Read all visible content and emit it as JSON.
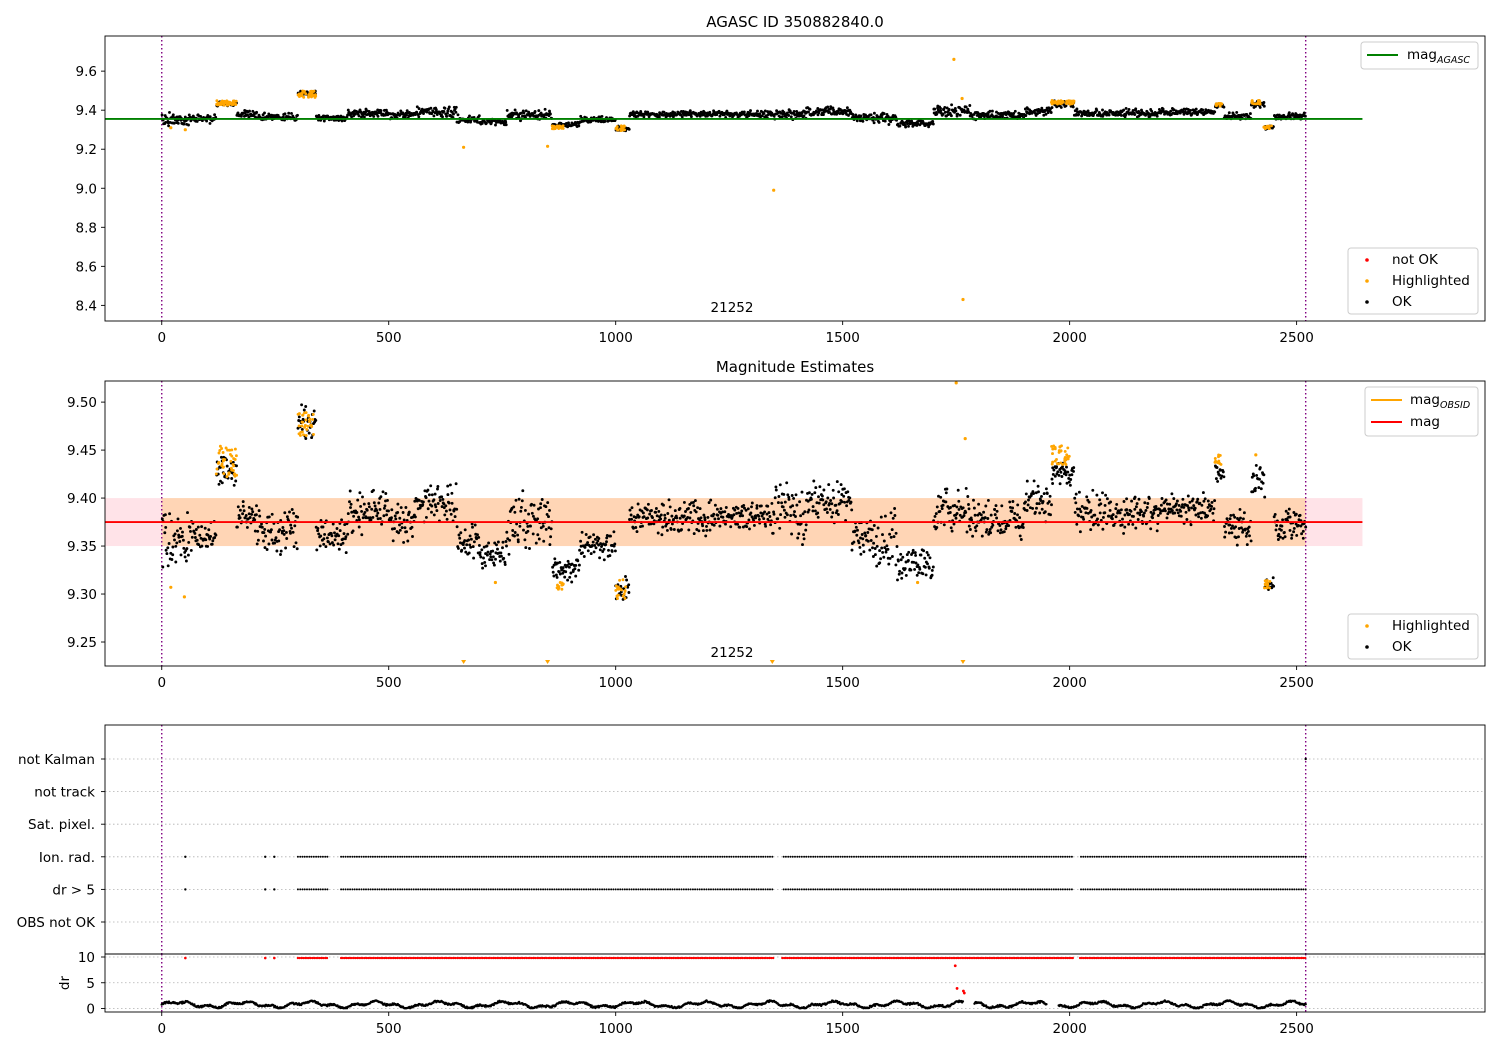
{
  "chart_data": [
    {
      "type": "scatter",
      "title": "AGASC ID 350882840.0",
      "annotation": "21252",
      "xlim": [
        -125,
        2915
      ],
      "ylim": [
        8.32,
        9.78
      ],
      "xticks": [
        0,
        500,
        1000,
        1500,
        2000,
        2500
      ],
      "yticks": [
        8.4,
        8.6,
        8.8,
        9.0,
        9.2,
        9.4,
        9.6
      ],
      "ytick_decimals": 1,
      "vlines": [
        0,
        2520
      ],
      "vline_color": "#800080",
      "legends": [
        {
          "position": "top-right",
          "entries": [
            {
              "label": "mag",
              "sub": "AGASC",
              "marker": "line",
              "color": "#008000"
            }
          ]
        },
        {
          "position": "bottom-right",
          "entries": [
            {
              "label": "not OK",
              "marker": "dot",
              "color": "#ff0000"
            },
            {
              "label": "Highlighted",
              "marker": "dot",
              "color": "#ffa500"
            },
            {
              "label": "OK",
              "marker": "dot",
              "color": "#000000"
            }
          ]
        }
      ],
      "hline": {
        "y": 9.355,
        "x": [
          -125,
          2645
        ],
        "color": "#008000"
      },
      "segments": [
        [
          0,
          15,
          9.3,
          9.4
        ],
        [
          15,
          60,
          9.31,
          9.39
        ],
        [
          60,
          120,
          9.33,
          9.38
        ],
        [
          120,
          165,
          9.42,
          9.45
        ],
        [
          165,
          210,
          9.36,
          9.4
        ],
        [
          210,
          300,
          9.34,
          9.39
        ],
        [
          300,
          340,
          9.47,
          9.5
        ],
        [
          340,
          410,
          9.34,
          9.38
        ],
        [
          410,
          500,
          9.36,
          9.41
        ],
        [
          500,
          560,
          9.35,
          9.4
        ],
        [
          560,
          650,
          9.36,
          9.42
        ],
        [
          650,
          700,
          9.33,
          9.38
        ],
        [
          700,
          760,
          9.32,
          9.36
        ],
        [
          760,
          860,
          9.34,
          9.41
        ],
        [
          860,
          920,
          9.31,
          9.34
        ],
        [
          920,
          1000,
          9.33,
          9.37
        ],
        [
          1000,
          1030,
          9.29,
          9.32
        ],
        [
          1030,
          1150,
          9.36,
          9.4
        ],
        [
          1150,
          1330,
          9.36,
          9.4
        ],
        [
          1330,
          1420,
          9.35,
          9.41
        ],
        [
          1420,
          1520,
          9.37,
          9.42
        ],
        [
          1520,
          1560,
          9.34,
          9.38
        ],
        [
          1560,
          1620,
          9.32,
          9.39
        ],
        [
          1620,
          1700,
          9.31,
          9.35
        ],
        [
          1700,
          1780,
          9.36,
          9.43
        ],
        [
          1780,
          1900,
          9.35,
          9.4
        ],
        [
          1900,
          1960,
          9.37,
          9.42
        ],
        [
          1960,
          2010,
          9.41,
          9.45
        ],
        [
          2010,
          2200,
          9.36,
          9.41
        ],
        [
          2200,
          2320,
          9.37,
          9.41
        ],
        [
          2320,
          2340,
          9.41,
          9.44
        ],
        [
          2340,
          2400,
          9.35,
          9.39
        ],
        [
          2400,
          2430,
          9.41,
          9.45
        ],
        [
          2430,
          2450,
          9.3,
          9.32
        ],
        [
          2450,
          2520,
          9.35,
          9.39
        ]
      ],
      "highlight_clusters": [
        [
          120,
          165,
          9.425,
          9.45
        ],
        [
          300,
          340,
          9.465,
          9.5
        ],
        [
          1960,
          2010,
          9.43,
          9.45
        ],
        [
          2320,
          2335,
          9.42,
          9.44
        ],
        [
          2400,
          2420,
          9.43,
          9.45
        ],
        [
          2428,
          2445,
          9.305,
          9.32
        ],
        [
          1000,
          1020,
          9.295,
          9.32
        ],
        [
          860,
          885,
          9.305,
          9.32
        ]
      ],
      "highlight_points": [
        [
          665,
          9.21
        ],
        [
          850,
          9.215
        ],
        [
          1348,
          8.99
        ],
        [
          1745,
          9.66
        ],
        [
          1763,
          9.46
        ],
        [
          1765,
          8.43
        ],
        [
          52,
          9.3
        ],
        [
          20,
          9.31
        ]
      ]
    },
    {
      "type": "scatter",
      "title": "Magnitude Estimates",
      "annotation": "21252",
      "xlim": [
        -125,
        2915
      ],
      "ylim": [
        9.225,
        9.522
      ],
      "xticks": [
        0,
        500,
        1000,
        1500,
        2000,
        2500
      ],
      "yticks": [
        9.25,
        9.3,
        9.35,
        9.4,
        9.45,
        9.5
      ],
      "ytick_decimals": 2,
      "vlines": [
        0,
        2520
      ],
      "vline_color": "#800080",
      "legends": [
        {
          "position": "top-right",
          "entries": [
            {
              "label": "mag",
              "sub": "OBSID",
              "marker": "line",
              "color": "#ffa500"
            },
            {
              "label": "mag",
              "marker": "line",
              "color": "#ff0000"
            }
          ]
        },
        {
          "position": "bottom-right",
          "entries": [
            {
              "label": "Highlighted",
              "marker": "dot",
              "color": "#ffa500"
            },
            {
              "label": "OK",
              "marker": "dot",
              "color": "#000000"
            }
          ]
        }
      ],
      "hline": {
        "y": 9.375,
        "x": [
          -125,
          2645
        ],
        "color": "#ff0000"
      },
      "bands": [
        {
          "x": [
            -125,
            2645
          ],
          "y": [
            9.35,
            9.4
          ],
          "color": "#ffc0cb",
          "opacity": 0.45
        },
        {
          "x": [
            0,
            2520
          ],
          "y": [
            9.35,
            9.4
          ],
          "color": "#ffa500",
          "opacity": 0.22
        }
      ],
      "segments": [
        [
          0,
          15,
          9.31,
          9.4
        ],
        [
          15,
          60,
          9.32,
          9.39
        ],
        [
          60,
          120,
          9.34,
          9.38
        ],
        [
          120,
          165,
          9.41,
          9.45
        ],
        [
          165,
          210,
          9.36,
          9.4
        ],
        [
          210,
          300,
          9.34,
          9.39
        ],
        [
          300,
          340,
          9.46,
          9.5
        ],
        [
          340,
          410,
          9.34,
          9.38
        ],
        [
          410,
          500,
          9.36,
          9.41
        ],
        [
          500,
          560,
          9.35,
          9.4
        ],
        [
          560,
          650,
          9.37,
          9.42
        ],
        [
          650,
          700,
          9.33,
          9.38
        ],
        [
          700,
          760,
          9.32,
          9.36
        ],
        [
          760,
          860,
          9.34,
          9.41
        ],
        [
          860,
          920,
          9.31,
          9.34
        ],
        [
          920,
          1000,
          9.33,
          9.37
        ],
        [
          1000,
          1030,
          9.29,
          9.32
        ],
        [
          1030,
          1150,
          9.36,
          9.4
        ],
        [
          1150,
          1330,
          9.36,
          9.4
        ],
        [
          1330,
          1420,
          9.35,
          9.42
        ],
        [
          1420,
          1520,
          9.37,
          9.42
        ],
        [
          1520,
          1560,
          9.34,
          9.38
        ],
        [
          1560,
          1620,
          9.32,
          9.39
        ],
        [
          1620,
          1700,
          9.31,
          9.35
        ],
        [
          1700,
          1780,
          9.36,
          9.42
        ],
        [
          1780,
          1900,
          9.35,
          9.4
        ],
        [
          1900,
          1960,
          9.37,
          9.42
        ],
        [
          1960,
          2010,
          9.41,
          9.44
        ],
        [
          2010,
          2200,
          9.36,
          9.41
        ],
        [
          2200,
          2320,
          9.37,
          9.41
        ],
        [
          2320,
          2340,
          9.41,
          9.44
        ],
        [
          2340,
          2400,
          9.35,
          9.39
        ],
        [
          2400,
          2430,
          9.4,
          9.44
        ],
        [
          2430,
          2450,
          9.3,
          9.32
        ],
        [
          2450,
          2520,
          9.35,
          9.39
        ]
      ],
      "highlight_clusters": [
        [
          120,
          165,
          9.42,
          9.455
        ],
        [
          300,
          335,
          9.465,
          9.49
        ],
        [
          1960,
          2000,
          9.435,
          9.455
        ],
        [
          2320,
          2335,
          9.435,
          9.445
        ],
        [
          2428,
          2445,
          9.305,
          9.315
        ],
        [
          1000,
          1022,
          9.295,
          9.315
        ],
        [
          870,
          885,
          9.305,
          9.312
        ]
      ],
      "highlight_points": [
        [
          20,
          9.307
        ],
        [
          50,
          9.297
        ],
        [
          735,
          9.312
        ],
        [
          1665,
          9.312
        ],
        [
          1770,
          9.462
        ],
        [
          1750,
          9.52
        ],
        [
          2410,
          9.445
        ]
      ],
      "offscale_markers": [
        665,
        850,
        1345,
        1765
      ]
    },
    {
      "type": "scatter",
      "title": "",
      "xlim": [
        -125,
        2915
      ],
      "categories": [
        "not Kalman",
        "not track",
        "Sat. pixel.",
        "Ion. rad.",
        "dr > 5",
        "OBS not OK"
      ],
      "vlines": [
        0,
        2520
      ],
      "vline_color": "#800080",
      "flag_ranges": [
        {
          "category": "Ion. rad.",
          "isolated": [
            52,
            228,
            248
          ],
          "ranges": [
            [
              300,
              365
            ],
            [
              395,
              2520
            ]
          ],
          "gaps": [
            [
              1350,
              1365
            ],
            [
              2010,
              2022
            ]
          ]
        },
        {
          "category": "dr > 5",
          "isolated": [
            52,
            228,
            248
          ],
          "ranges": [
            [
              300,
              365
            ],
            [
              395,
              2520
            ]
          ],
          "gaps": [
            [
              1350,
              1365
            ],
            [
              2010,
              2022
            ]
          ]
        }
      ],
      "end_markers": [
        {
          "category": "not Kalman",
          "x": 2520
        }
      ]
    },
    {
      "type": "scatter",
      "title": "",
      "ylabel": "dr",
      "xlim": [
        -125,
        2915
      ],
      "ylim": [
        -0.5,
        10.5
      ],
      "xticks": [
        0,
        500,
        1000,
        1500,
        2000,
        2500
      ],
      "yticks": [
        0,
        5,
        10
      ],
      "ytick_decimals": 0,
      "vlines": [
        0,
        2520
      ],
      "vline_color": "#800080",
      "clip_line": {
        "y": 9.8,
        "color": "#ff0000",
        "ranges": [
          [
            300,
            365
          ],
          [
            395,
            2520
          ]
        ],
        "isolated": [
          52,
          228,
          248
        ]
      },
      "dr_points": [
        [
          1748,
          8.3
        ],
        [
          1752,
          3.9
        ],
        [
          1766,
          3.4
        ],
        [
          1768,
          3.0
        ]
      ],
      "gap": [
        1765,
        1790
      ]
    }
  ]
}
